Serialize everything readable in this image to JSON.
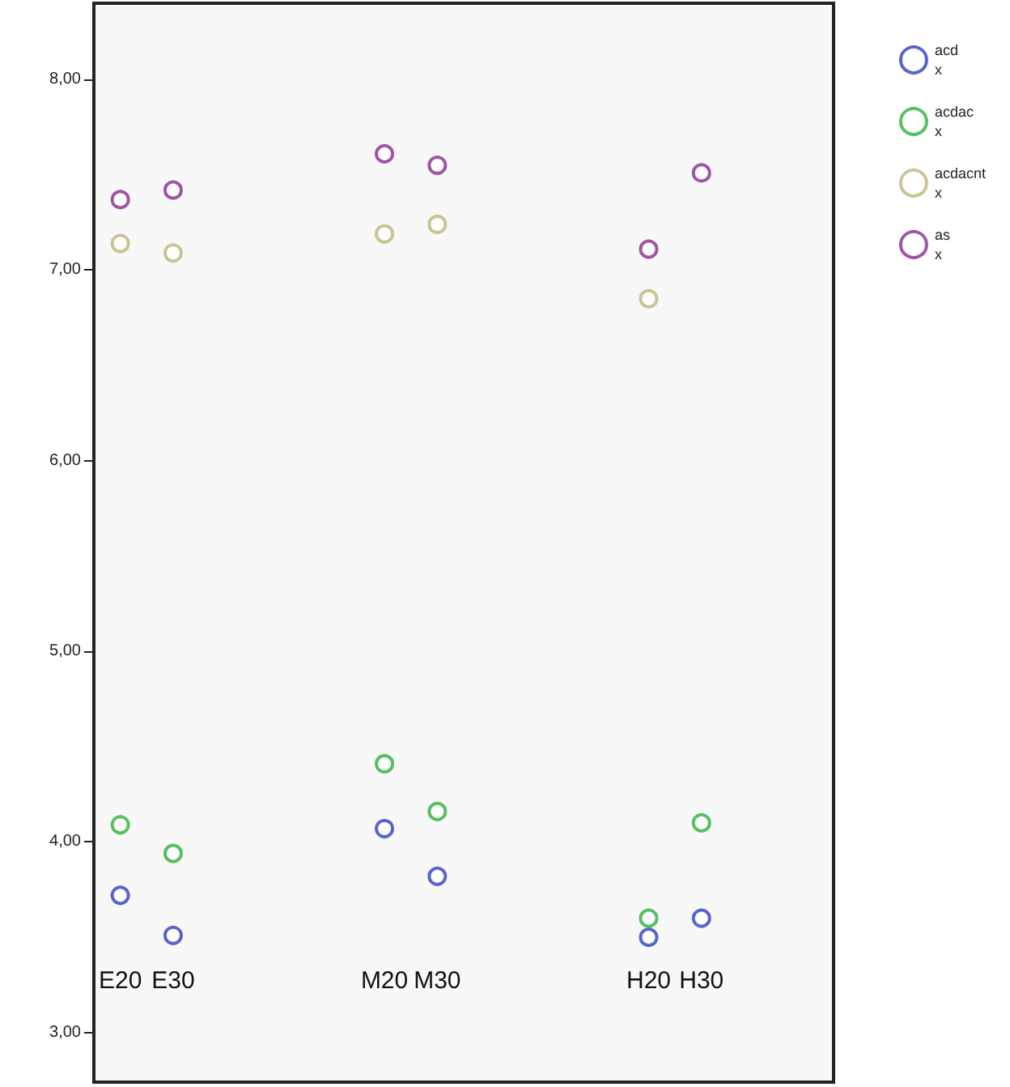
{
  "chart_data": {
    "type": "scatter",
    "categories": [
      "E20",
      "E30",
      null,
      null,
      null,
      "M20",
      "M30",
      null,
      null,
      null,
      "H20",
      "H30",
      null,
      null
    ],
    "series": [
      {
        "name": "acd\nx",
        "color": "#2f3fbf",
        "values": [
          3.72,
          3.51,
          null,
          null,
          null,
          4.07,
          3.82,
          null,
          null,
          null,
          3.5,
          3.6,
          null,
          null
        ]
      },
      {
        "name": "acdac\nx",
        "color": "#2db03a",
        "values": [
          4.09,
          3.94,
          null,
          null,
          null,
          4.41,
          4.16,
          null,
          null,
          null,
          3.6,
          4.1,
          null,
          null
        ]
      },
      {
        "name": "acdacnt\nx",
        "color": "#bdb77a",
        "values": [
          7.14,
          7.09,
          null,
          null,
          null,
          7.19,
          7.24,
          null,
          null,
          null,
          6.85,
          null,
          null,
          null
        ]
      },
      {
        "name": "as\nx",
        "color": "#8b2a8f",
        "values": [
          7.37,
          7.42,
          null,
          null,
          null,
          7.61,
          7.55,
          null,
          null,
          null,
          7.11,
          7.51,
          null,
          null
        ]
      }
    ],
    "ylim": [
      2.74,
      8.4
    ],
    "yticks": [
      {
        "value": 3,
        "label": "3,00"
      },
      {
        "value": 4,
        "label": "4,00"
      },
      {
        "value": 5,
        "label": "5,00"
      },
      {
        "value": 6,
        "label": "6,00"
      },
      {
        "value": 7,
        "label": "7,00"
      },
      {
        "value": 8,
        "label": "8,00"
      }
    ],
    "marker": "circle",
    "grid": false,
    "legend": "top right"
  }
}
